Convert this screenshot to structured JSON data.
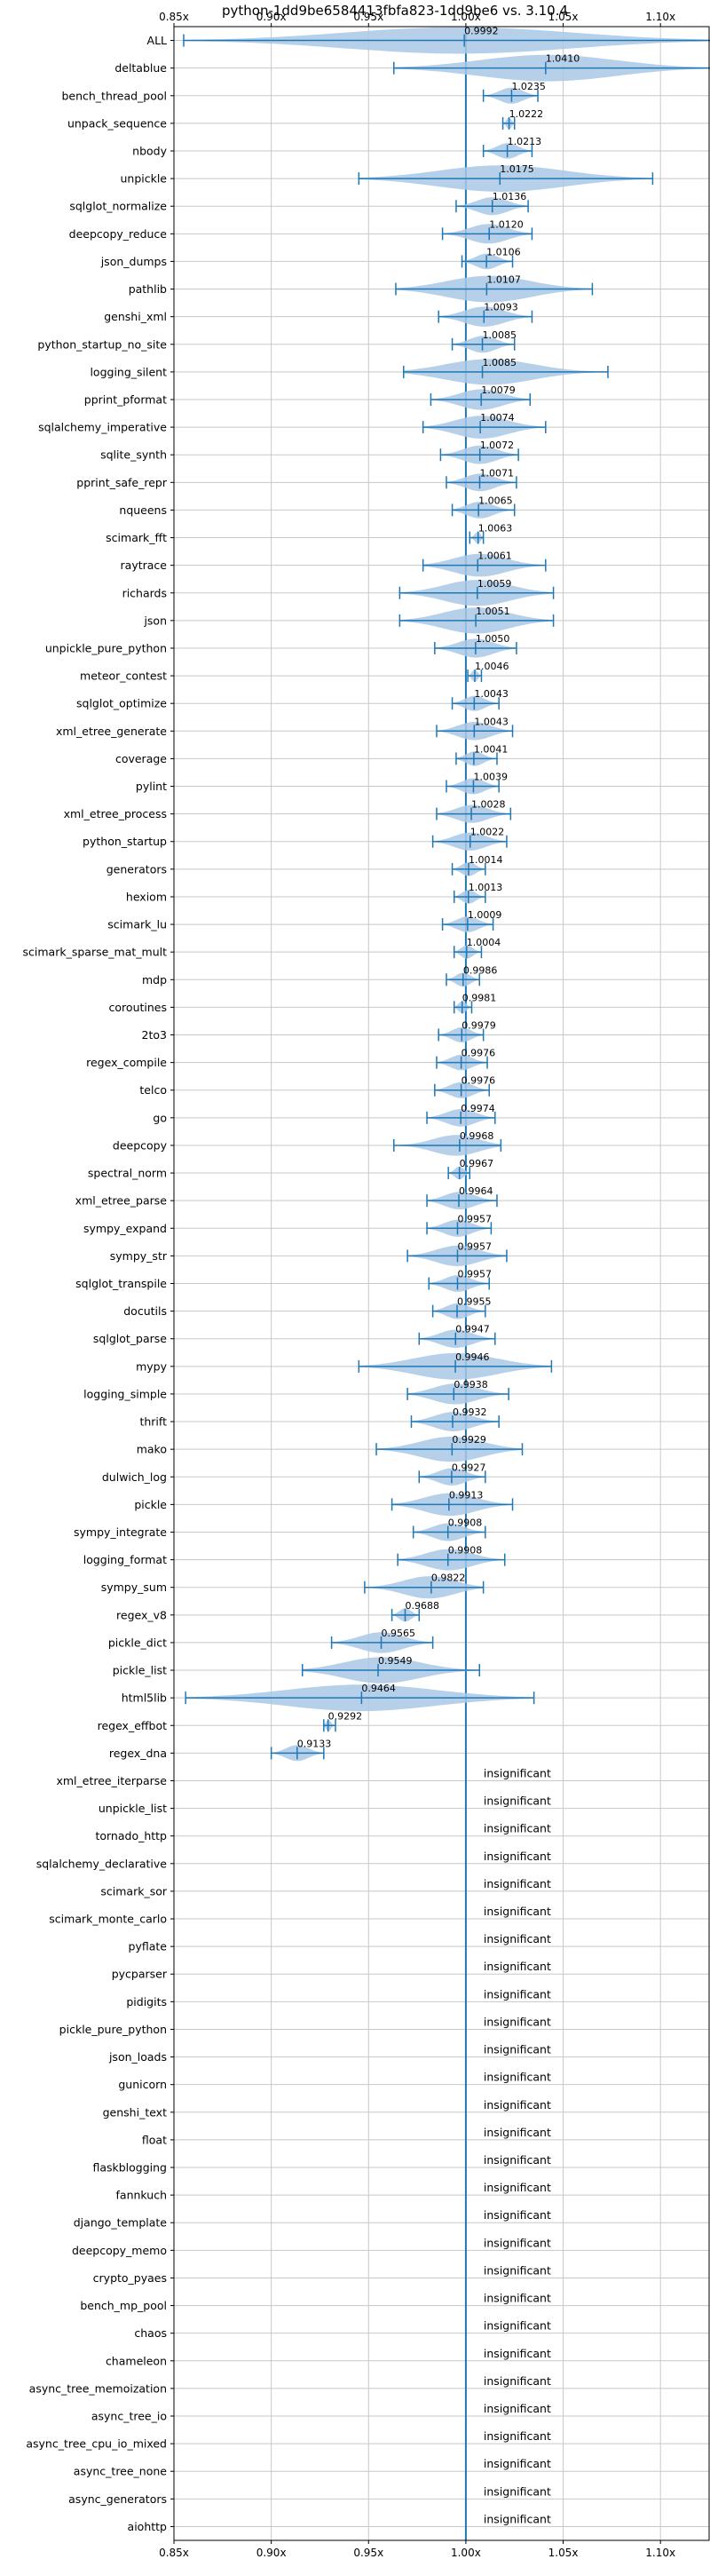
{
  "chart_data": {
    "type": "violin",
    "title": "python-1dd9be6584413fbfa823-1dd9be6 vs. 3.10.4",
    "xlabel": "",
    "ylabel": "",
    "xlim": [
      0.85,
      1.125
    ],
    "xticks": [
      {
        "value": 0.85,
        "label": "0.85x"
      },
      {
        "value": 0.9,
        "label": "0.90x"
      },
      {
        "value": 0.95,
        "label": "0.95x"
      },
      {
        "value": 1.0,
        "label": "1.00x"
      },
      {
        "value": 1.05,
        "label": "1.05x"
      },
      {
        "value": 1.1,
        "label": "1.10x"
      }
    ],
    "reference_line": 1.0,
    "grid": true,
    "colors": {
      "violin": "#aac8e6",
      "stroke": "#1f77b4",
      "grid": "#c8c8c8"
    },
    "benchmarks": [
      {
        "name": "ALL",
        "mean": 0.9992,
        "min": 0.855,
        "max": 1.126,
        "label": "0.9992"
      },
      {
        "name": "deltablue",
        "mean": 1.041,
        "min": 0.963,
        "max": 1.126,
        "label": "1.0410"
      },
      {
        "name": "bench_thread_pool",
        "mean": 1.0235,
        "min": 1.009,
        "max": 1.037,
        "label": "1.0235"
      },
      {
        "name": "unpack_sequence",
        "mean": 1.0222,
        "min": 1.019,
        "max": 1.025,
        "label": "1.0222"
      },
      {
        "name": "nbody",
        "mean": 1.0213,
        "min": 1.009,
        "max": 1.034,
        "label": "1.0213"
      },
      {
        "name": "unpickle",
        "mean": 1.0175,
        "min": 0.945,
        "max": 1.096,
        "label": "1.0175"
      },
      {
        "name": "sqlglot_normalize",
        "mean": 1.0136,
        "min": 0.995,
        "max": 1.032,
        "label": "1.0136"
      },
      {
        "name": "deepcopy_reduce",
        "mean": 1.012,
        "min": 0.988,
        "max": 1.034,
        "label": "1.0120"
      },
      {
        "name": "json_dumps",
        "mean": 1.0106,
        "min": 0.998,
        "max": 1.024,
        "label": "1.0106"
      },
      {
        "name": "pathlib",
        "mean": 1.0107,
        "min": 0.964,
        "max": 1.065,
        "label": "1.0107"
      },
      {
        "name": "genshi_xml",
        "mean": 1.0093,
        "min": 0.986,
        "max": 1.034,
        "label": "1.0093"
      },
      {
        "name": "python_startup_no_site",
        "mean": 1.0085,
        "min": 0.993,
        "max": 1.025,
        "label": "1.0085"
      },
      {
        "name": "logging_silent",
        "mean": 1.0085,
        "min": 0.968,
        "max": 1.073,
        "label": "1.0085"
      },
      {
        "name": "pprint_pformat",
        "mean": 1.0079,
        "min": 0.982,
        "max": 1.033,
        "label": "1.0079"
      },
      {
        "name": "sqlalchemy_imperative",
        "mean": 1.0074,
        "min": 0.978,
        "max": 1.041,
        "label": "1.0074"
      },
      {
        "name": "sqlite_synth",
        "mean": 1.0072,
        "min": 0.987,
        "max": 1.027,
        "label": "1.0072"
      },
      {
        "name": "pprint_safe_repr",
        "mean": 1.0071,
        "min": 0.99,
        "max": 1.026,
        "label": "1.0071"
      },
      {
        "name": "nqueens",
        "mean": 1.0065,
        "min": 0.993,
        "max": 1.025,
        "label": "1.0065"
      },
      {
        "name": "scimark_fft",
        "mean": 1.0063,
        "min": 1.002,
        "max": 1.009,
        "label": "1.0063"
      },
      {
        "name": "raytrace",
        "mean": 1.0061,
        "min": 0.978,
        "max": 1.041,
        "label": "1.0061"
      },
      {
        "name": "richards",
        "mean": 1.0059,
        "min": 0.966,
        "max": 1.045,
        "label": "1.0059"
      },
      {
        "name": "json",
        "mean": 1.0051,
        "min": 0.966,
        "max": 1.045,
        "label": "1.0051"
      },
      {
        "name": "unpickle_pure_python",
        "mean": 1.005,
        "min": 0.984,
        "max": 1.026,
        "label": "1.0050"
      },
      {
        "name": "meteor_contest",
        "mean": 1.0046,
        "min": 1.001,
        "max": 1.008,
        "label": "1.0046"
      },
      {
        "name": "sqlglot_optimize",
        "mean": 1.0043,
        "min": 0.993,
        "max": 1.017,
        "label": "1.0043"
      },
      {
        "name": "xml_etree_generate",
        "mean": 1.0043,
        "min": 0.985,
        "max": 1.024,
        "label": "1.0043"
      },
      {
        "name": "coverage",
        "mean": 1.0041,
        "min": 0.995,
        "max": 1.016,
        "label": "1.0041"
      },
      {
        "name": "pylint",
        "mean": 1.0039,
        "min": 0.99,
        "max": 1.017,
        "label": "1.0039"
      },
      {
        "name": "xml_etree_process",
        "mean": 1.0028,
        "min": 0.985,
        "max": 1.023,
        "label": "1.0028"
      },
      {
        "name": "python_startup",
        "mean": 1.0022,
        "min": 0.983,
        "max": 1.021,
        "label": "1.0022"
      },
      {
        "name": "generators",
        "mean": 1.0014,
        "min": 0.993,
        "max": 1.01,
        "label": "1.0014"
      },
      {
        "name": "hexiom",
        "mean": 1.0013,
        "min": 0.994,
        "max": 1.01,
        "label": "1.0013"
      },
      {
        "name": "scimark_lu",
        "mean": 1.0009,
        "min": 0.988,
        "max": 1.014,
        "label": "1.0009"
      },
      {
        "name": "scimark_sparse_mat_mult",
        "mean": 1.0004,
        "min": 0.994,
        "max": 1.008,
        "label": "1.0004"
      },
      {
        "name": "mdp",
        "mean": 0.9986,
        "min": 0.99,
        "max": 1.007,
        "label": "0.9986"
      },
      {
        "name": "coroutines",
        "mean": 0.9981,
        "min": 0.994,
        "max": 1.003,
        "label": "0.9981"
      },
      {
        "name": "2to3",
        "mean": 0.9979,
        "min": 0.986,
        "max": 1.009,
        "label": "0.9979"
      },
      {
        "name": "regex_compile",
        "mean": 0.9976,
        "min": 0.985,
        "max": 1.011,
        "label": "0.9976"
      },
      {
        "name": "telco",
        "mean": 0.9976,
        "min": 0.984,
        "max": 1.012,
        "label": "0.9976"
      },
      {
        "name": "go",
        "mean": 0.9974,
        "min": 0.98,
        "max": 1.015,
        "label": "0.9974"
      },
      {
        "name": "deepcopy",
        "mean": 0.9968,
        "min": 0.963,
        "max": 1.018,
        "label": "0.9968"
      },
      {
        "name": "spectral_norm",
        "mean": 0.9967,
        "min": 0.991,
        "max": 1.002,
        "label": "0.9967"
      },
      {
        "name": "xml_etree_parse",
        "mean": 0.9964,
        "min": 0.98,
        "max": 1.016,
        "label": "0.9964"
      },
      {
        "name": "sympy_expand",
        "mean": 0.9957,
        "min": 0.98,
        "max": 1.013,
        "label": "0.9957"
      },
      {
        "name": "sympy_str",
        "mean": 0.9957,
        "min": 0.97,
        "max": 1.021,
        "label": "0.9957"
      },
      {
        "name": "sqlglot_transpile",
        "mean": 0.9957,
        "min": 0.981,
        "max": 1.012,
        "label": "0.9957"
      },
      {
        "name": "docutils",
        "mean": 0.9955,
        "min": 0.983,
        "max": 1.01,
        "label": "0.9955"
      },
      {
        "name": "sqlglot_parse",
        "mean": 0.9947,
        "min": 0.976,
        "max": 1.015,
        "label": "0.9947"
      },
      {
        "name": "mypy",
        "mean": 0.9946,
        "min": 0.945,
        "max": 1.044,
        "label": "0.9946"
      },
      {
        "name": "logging_simple",
        "mean": 0.9938,
        "min": 0.97,
        "max": 1.022,
        "label": "0.9938"
      },
      {
        "name": "thrift",
        "mean": 0.9932,
        "min": 0.972,
        "max": 1.017,
        "label": "0.9932"
      },
      {
        "name": "mako",
        "mean": 0.9929,
        "min": 0.954,
        "max": 1.029,
        "label": "0.9929"
      },
      {
        "name": "dulwich_log",
        "mean": 0.9927,
        "min": 0.976,
        "max": 1.01,
        "label": "0.9927"
      },
      {
        "name": "pickle",
        "mean": 0.9913,
        "min": 0.962,
        "max": 1.024,
        "label": "0.9913"
      },
      {
        "name": "sympy_integrate",
        "mean": 0.9908,
        "min": 0.973,
        "max": 1.01,
        "label": "0.9908"
      },
      {
        "name": "logging_format",
        "mean": 0.9908,
        "min": 0.965,
        "max": 1.02,
        "label": "0.9908"
      },
      {
        "name": "sympy_sum",
        "mean": 0.9822,
        "min": 0.948,
        "max": 1.009,
        "label": "0.9822"
      },
      {
        "name": "regex_v8",
        "mean": 0.9688,
        "min": 0.962,
        "max": 0.976,
        "label": "0.9688"
      },
      {
        "name": "pickle_dict",
        "mean": 0.9565,
        "min": 0.931,
        "max": 0.983,
        "label": "0.9565"
      },
      {
        "name": "pickle_list",
        "mean": 0.9549,
        "min": 0.916,
        "max": 1.007,
        "label": "0.9549"
      },
      {
        "name": "html5lib",
        "mean": 0.9464,
        "min": 0.856,
        "max": 1.035,
        "label": "0.9464"
      },
      {
        "name": "regex_effbot",
        "mean": 0.9292,
        "min": 0.927,
        "max": 0.933,
        "label": "0.9292"
      },
      {
        "name": "regex_dna",
        "mean": 0.9133,
        "min": 0.9,
        "max": 0.927,
        "label": "0.9133"
      },
      {
        "name": "xml_etree_iterparse",
        "insignificant": true
      },
      {
        "name": "unpickle_list",
        "insignificant": true
      },
      {
        "name": "tornado_http",
        "insignificant": true
      },
      {
        "name": "sqlalchemy_declarative",
        "insignificant": true
      },
      {
        "name": "scimark_sor",
        "insignificant": true
      },
      {
        "name": "scimark_monte_carlo",
        "insignificant": true
      },
      {
        "name": "pyflate",
        "insignificant": true
      },
      {
        "name": "pycparser",
        "insignificant": true
      },
      {
        "name": "pidigits",
        "insignificant": true
      },
      {
        "name": "pickle_pure_python",
        "insignificant": true
      },
      {
        "name": "json_loads",
        "insignificant": true
      },
      {
        "name": "gunicorn",
        "insignificant": true
      },
      {
        "name": "genshi_text",
        "insignificant": true
      },
      {
        "name": "float",
        "insignificant": true
      },
      {
        "name": "flaskblogging",
        "insignificant": true
      },
      {
        "name": "fannkuch",
        "insignificant": true
      },
      {
        "name": "django_template",
        "insignificant": true
      },
      {
        "name": "deepcopy_memo",
        "insignificant": true
      },
      {
        "name": "crypto_pyaes",
        "insignificant": true
      },
      {
        "name": "bench_mp_pool",
        "insignificant": true
      },
      {
        "name": "chaos",
        "insignificant": true
      },
      {
        "name": "chameleon",
        "insignificant": true
      },
      {
        "name": "async_tree_memoization",
        "insignificant": true
      },
      {
        "name": "async_tree_io",
        "insignificant": true
      },
      {
        "name": "async_tree_cpu_io_mixed",
        "insignificant": true
      },
      {
        "name": "async_tree_none",
        "insignificant": true
      },
      {
        "name": "async_generators",
        "insignificant": true
      },
      {
        "name": "aiohttp",
        "insignificant": true
      }
    ],
    "insignificant_label": "insignificant"
  }
}
